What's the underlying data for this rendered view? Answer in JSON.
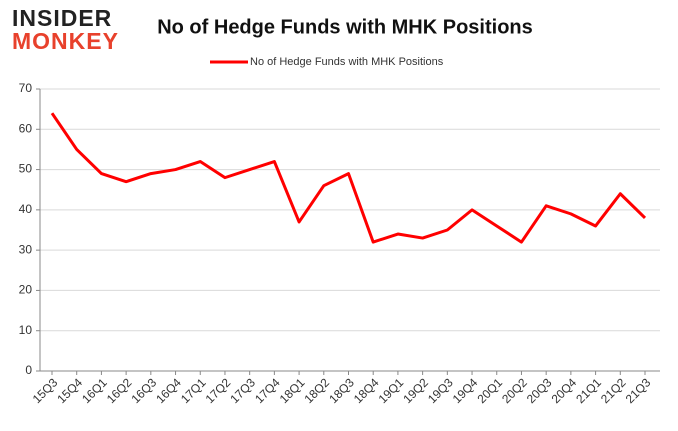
{
  "logo": {
    "line1": "INSIDER",
    "line2": "MONKEY"
  },
  "chart_data": {
    "type": "line",
    "title": "No of Hedge Funds with MHK Positions",
    "categories": [
      "15Q3",
      "15Q4",
      "16Q1",
      "16Q2",
      "16Q3",
      "16Q4",
      "17Q1",
      "17Q2",
      "17Q3",
      "17Q4",
      "18Q1",
      "18Q2",
      "18Q3",
      "18Q4",
      "19Q1",
      "19Q2",
      "19Q3",
      "19Q4",
      "20Q1",
      "20Q2",
      "20Q3",
      "20Q4",
      "21Q1",
      "21Q2",
      "21Q3"
    ],
    "series": [
      {
        "name": "No of Hedge Funds with MHK Positions",
        "color": "#ff0000",
        "values": [
          64,
          55,
          49,
          47,
          49,
          50,
          52,
          48,
          50,
          52,
          37,
          46,
          49,
          32,
          34,
          33,
          35,
          40,
          36,
          32,
          41,
          39,
          36,
          44,
          38
        ]
      }
    ],
    "ylim": [
      0,
      70
    ],
    "yticks": [
      0,
      10,
      20,
      30,
      40,
      50,
      60,
      70
    ],
    "grid": true,
    "legend": "top"
  }
}
